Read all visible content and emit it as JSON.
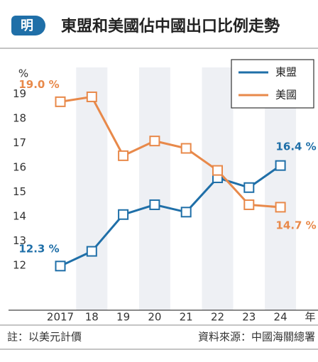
{
  "logo": "明",
  "chart_data": {
    "type": "line",
    "title": "東盟和美國佔中國出口比例走勢",
    "y_label": "%",
    "x_label": "年",
    "categories": [
      "2017",
      "18",
      "19",
      "20",
      "21",
      "22",
      "23",
      "24"
    ],
    "series": [
      {
        "name": "東盟",
        "color": "#1f6fa8",
        "values": [
          12.3,
          12.9,
          14.4,
          14.8,
          14.5,
          15.9,
          15.5,
          16.4
        ],
        "value_labels": [
          "12.3 %",
          null,
          null,
          null,
          null,
          null,
          null,
          "16.4 %"
        ]
      },
      {
        "name": "美國",
        "color": "#e8894a",
        "values": [
          19.0,
          19.2,
          16.8,
          17.4,
          17.1,
          16.2,
          14.8,
          14.7
        ],
        "value_labels": [
          "19.0 %",
          null,
          null,
          null,
          null,
          null,
          null,
          "14.7 %"
        ]
      }
    ],
    "ylim": [
      10.5,
      20.4
    ],
    "yticks": [
      12,
      13,
      14,
      15,
      16,
      17,
      18,
      19
    ],
    "legend": "top-right"
  },
  "footer": {
    "note": "註：以美元計價",
    "source": "資料來源：中國海關總署"
  }
}
